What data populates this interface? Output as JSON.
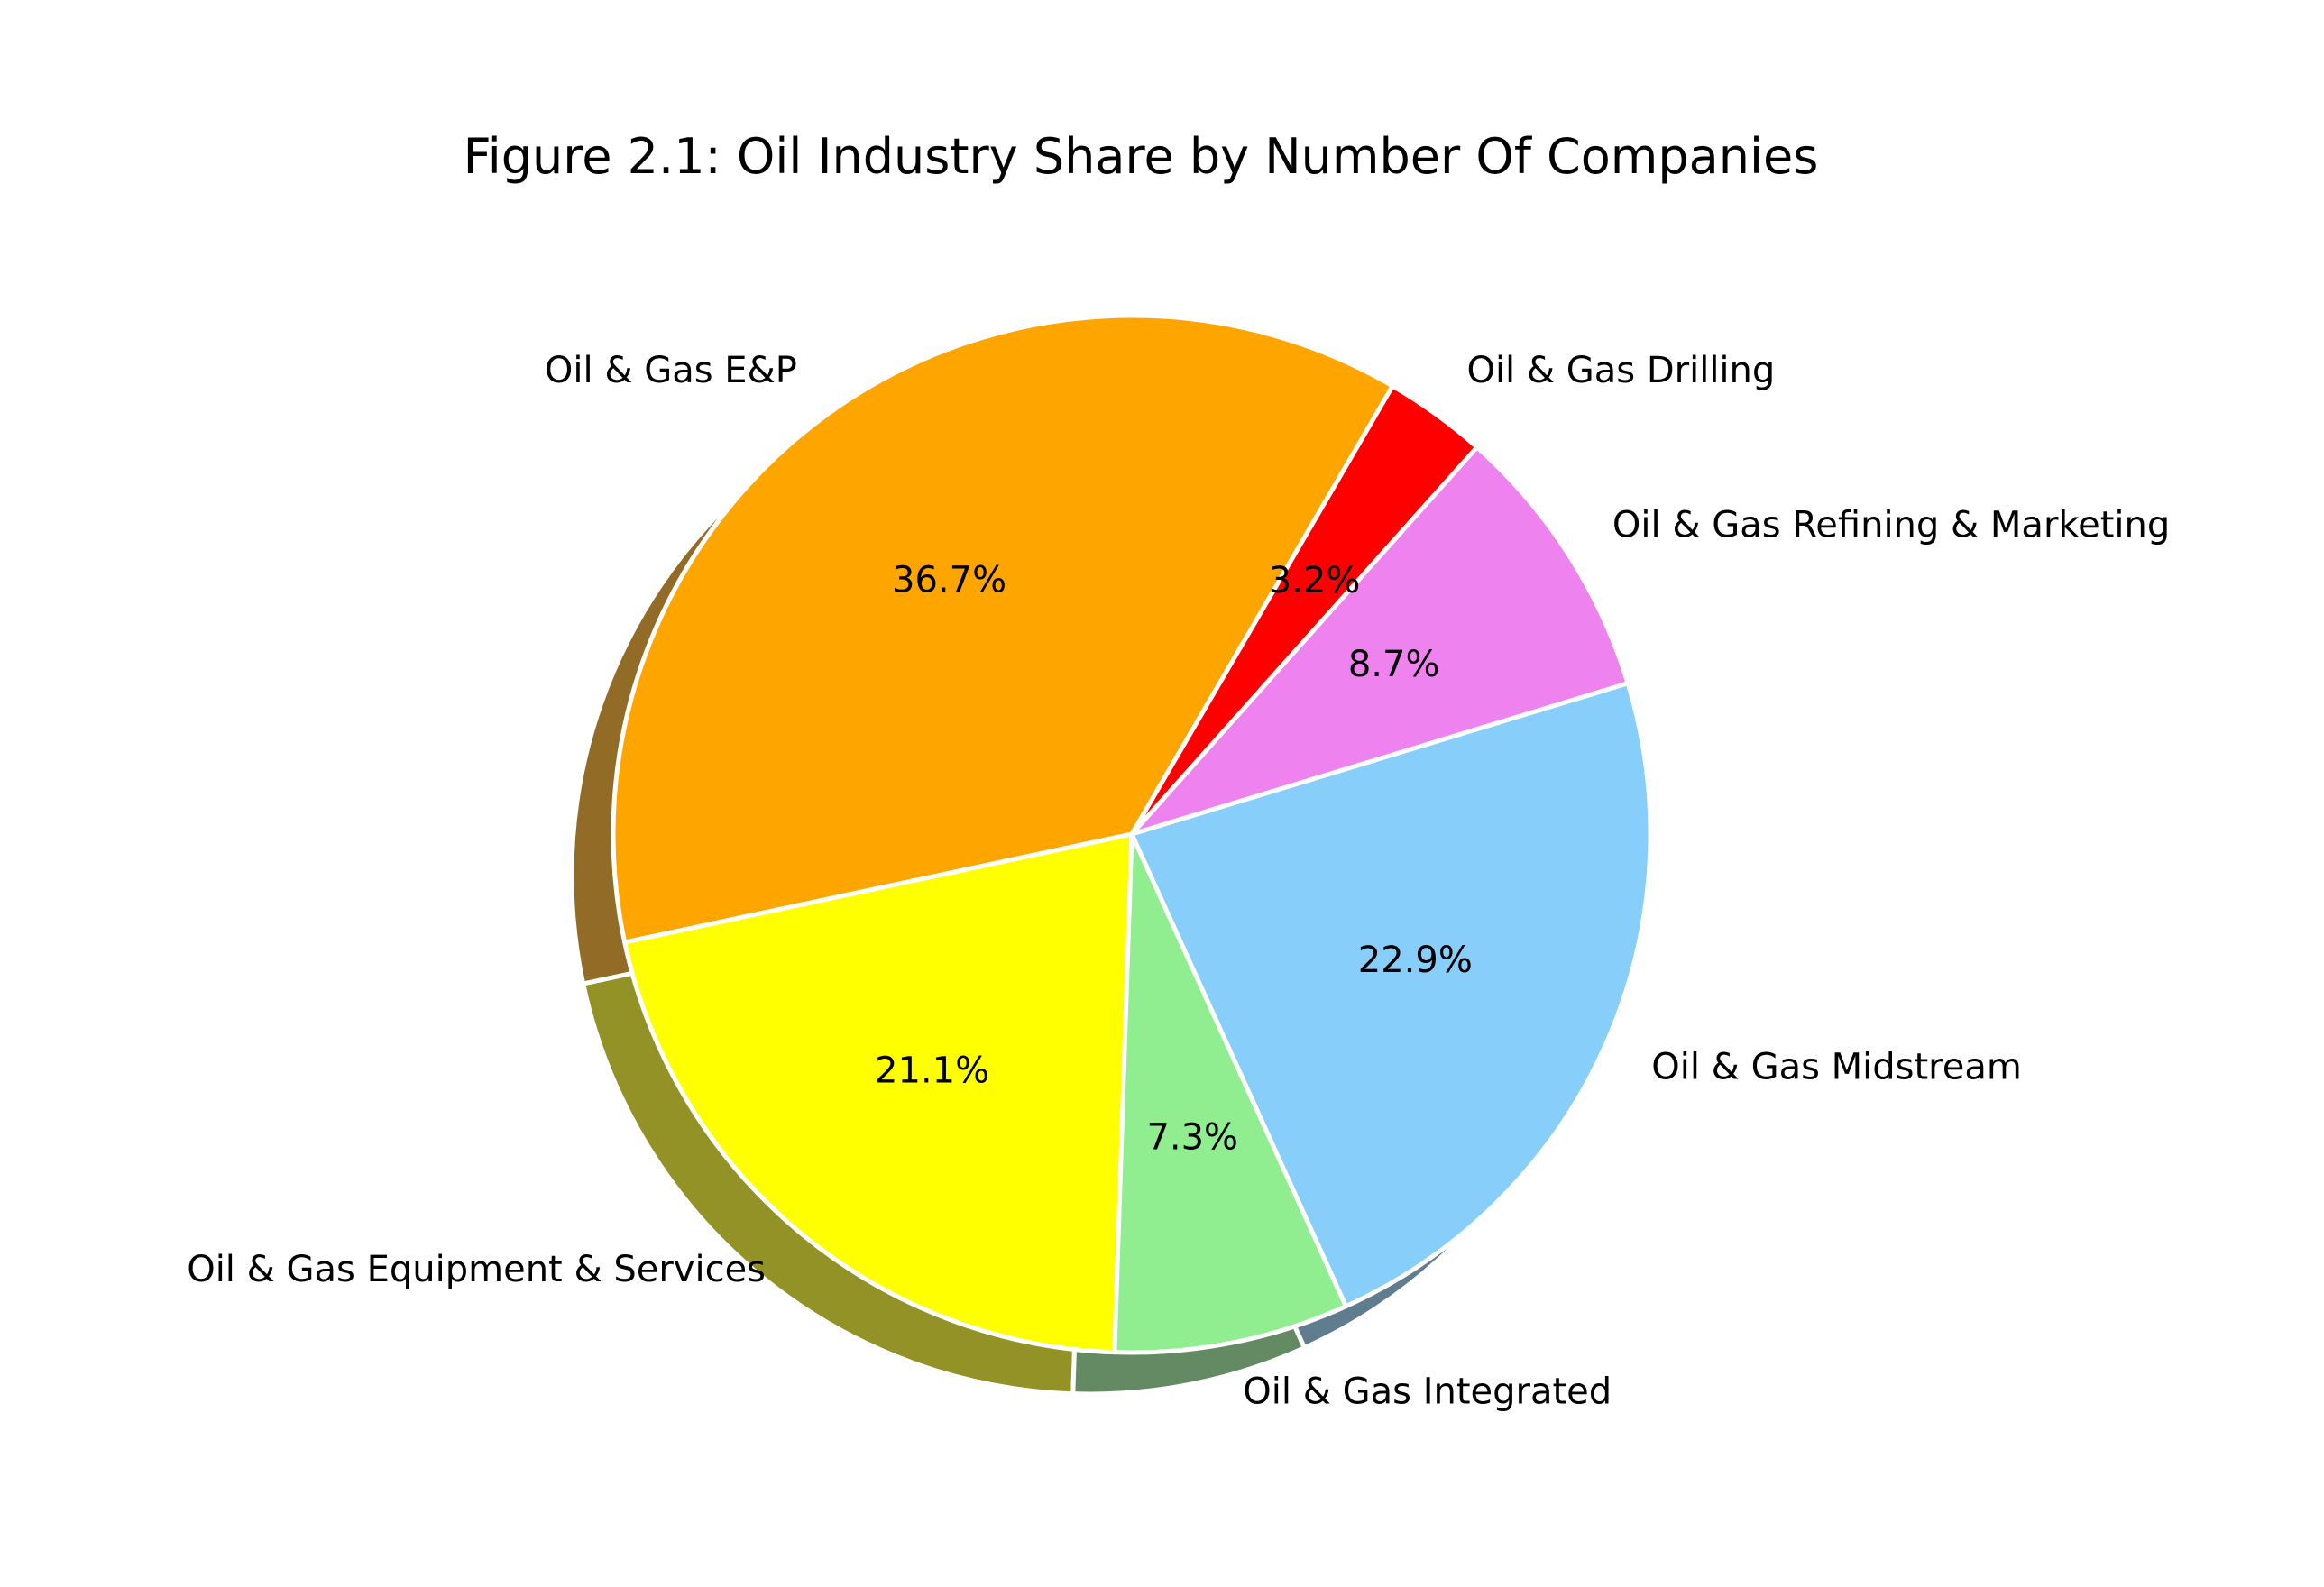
{
  "chart_data": {
    "type": "pie",
    "title": "Figure 2.1: Oil Industry Share by Number Of Companies",
    "shadow": true,
    "start_angle_deg": 59.8,
    "direction": "counterclockwise",
    "slices": [
      {
        "label": "Oil & Gas E&P",
        "value": 36.7,
        "pct_label": "36.7%",
        "color": "#FFA500",
        "explode": 0.0
      },
      {
        "label": "Oil & Gas Equipment & Services",
        "value": 21.1,
        "pct_label": "21.1%",
        "color": "#FFFF00",
        "explode": 0.0
      },
      {
        "label": "Oil & Gas Integrated",
        "value": 7.3,
        "pct_label": "7.3%",
        "color": "#90EE90",
        "explode": 0.0
      },
      {
        "label": "Oil & Gas Midstream",
        "value": 22.9,
        "pct_label": "22.9%",
        "color": "#87CEFA",
        "explode": 0.0
      },
      {
        "label": "Oil & Gas Refining & Marketing",
        "value": 8.7,
        "pct_label": "8.7%",
        "color": "#EE82EE",
        "explode": 0.0
      },
      {
        "label": "Oil & Gas Drilling",
        "value": 3.2,
        "pct_label": "3.2%",
        "color": "#FF0000",
        "explode": 0.0
      }
    ]
  }
}
